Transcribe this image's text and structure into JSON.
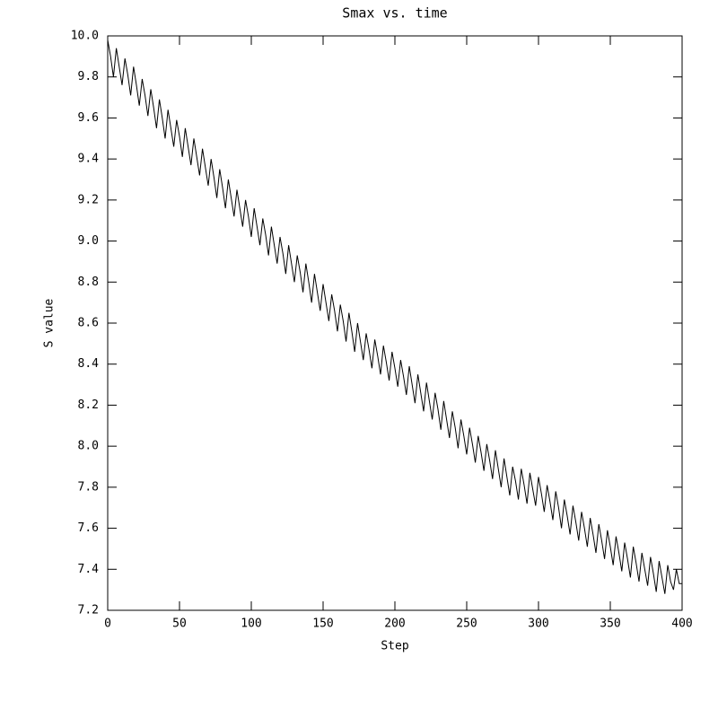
{
  "chart_data": {
    "type": "line",
    "title": "Smax vs. time",
    "x_label": "Step",
    "y_label": "S value",
    "xlim": [
      0,
      400
    ],
    "ylim": [
      7.2,
      10.0
    ],
    "xticks": [
      0,
      50,
      100,
      150,
      200,
      250,
      300,
      350,
      400
    ],
    "yticks": [
      7.2,
      7.4,
      7.6,
      7.8,
      {
        "value": 8.0,
        "label": "8.0"
      },
      8.2,
      8.4,
      8.6,
      8.8,
      {
        "value": 9.0,
        "label": "9.0"
      },
      9.2,
      9.4,
      9.6,
      9.8,
      {
        "value": 10.0,
        "label": "10.0"
      }
    ],
    "x": [
      0,
      2,
      4,
      6,
      8,
      10,
      12,
      14,
      16,
      18,
      20,
      22,
      24,
      26,
      28,
      30,
      32,
      34,
      36,
      38,
      40,
      42,
      44,
      46,
      48,
      50,
      52,
      54,
      56,
      58,
      60,
      62,
      64,
      66,
      68,
      70,
      72,
      74,
      76,
      78,
      80,
      82,
      84,
      86,
      88,
      90,
      92,
      94,
      96,
      98,
      100,
      102,
      104,
      106,
      108,
      110,
      112,
      114,
      116,
      118,
      120,
      122,
      124,
      126,
      128,
      130,
      132,
      134,
      136,
      138,
      140,
      142,
      144,
      146,
      148,
      150,
      152,
      154,
      156,
      158,
      160,
      162,
      164,
      166,
      168,
      170,
      172,
      174,
      176,
      178,
      180,
      182,
      184,
      186,
      188,
      190,
      192,
      194,
      196,
      198,
      200,
      202,
      204,
      206,
      208,
      210,
      212,
      214,
      216,
      218,
      220,
      222,
      224,
      226,
      228,
      230,
      232,
      234,
      236,
      238,
      240,
      242,
      244,
      246,
      248,
      250,
      252,
      254,
      256,
      258,
      260,
      262,
      264,
      266,
      268,
      270,
      272,
      274,
      276,
      278,
      280,
      282,
      284,
      286,
      288,
      290,
      292,
      294,
      296,
      298,
      300,
      302,
      304,
      306,
      308,
      310,
      312,
      314,
      316,
      318,
      320,
      322,
      324,
      326,
      328,
      330,
      332,
      334,
      336,
      338,
      340,
      342,
      344,
      346,
      348,
      350,
      352,
      354,
      356,
      358,
      360,
      362,
      364,
      366,
      368,
      370,
      372,
      374,
      376,
      378,
      380,
      382,
      384,
      386,
      388,
      390,
      392,
      394,
      396,
      398,
      400
    ],
    "series": [
      {
        "name": "Smax",
        "color": "#000000",
        "values": [
          9.98,
          9.9,
          9.8,
          9.94,
          9.85,
          9.76,
          9.89,
          9.81,
          9.71,
          9.85,
          9.76,
          9.66,
          9.79,
          9.71,
          9.61,
          9.74,
          9.65,
          9.55,
          9.69,
          9.6,
          9.5,
          9.64,
          9.55,
          9.46,
          9.59,
          9.51,
          9.41,
          9.55,
          9.46,
          9.37,
          9.5,
          9.41,
          9.32,
          9.45,
          9.36,
          9.27,
          9.4,
          9.31,
          9.21,
          9.35,
          9.26,
          9.16,
          9.3,
          9.21,
          9.12,
          9.25,
          9.16,
          9.07,
          9.2,
          9.12,
          9.02,
          9.16,
          9.07,
          8.98,
          9.11,
          9.03,
          8.93,
          9.07,
          8.98,
          8.89,
          9.02,
          8.94,
          8.84,
          8.98,
          8.89,
          8.8,
          8.93,
          8.85,
          8.75,
          8.89,
          8.8,
          8.7,
          8.84,
          8.75,
          8.66,
          8.79,
          8.7,
          8.61,
          8.74,
          8.66,
          8.56,
          8.69,
          8.61,
          8.51,
          8.65,
          8.56,
          8.46,
          8.6,
          8.51,
          8.42,
          8.55,
          8.47,
          8.38,
          8.52,
          8.44,
          8.35,
          8.49,
          8.41,
          8.32,
          8.46,
          8.38,
          8.29,
          8.42,
          8.34,
          8.25,
          8.39,
          8.3,
          8.21,
          8.35,
          8.26,
          8.17,
          8.31,
          8.22,
          8.13,
          8.26,
          8.18,
          8.08,
          8.22,
          8.13,
          8.04,
          8.17,
          8.09,
          7.99,
          8.13,
          8.05,
          7.96,
          8.09,
          8.01,
          7.92,
          8.05,
          7.97,
          7.88,
          8.01,
          7.93,
          7.84,
          7.98,
          7.89,
          7.8,
          7.94,
          7.85,
          7.76,
          7.9,
          7.83,
          7.74,
          7.89,
          7.81,
          7.72,
          7.87,
          7.79,
          7.71,
          7.85,
          7.77,
          7.68,
          7.81,
          7.73,
          7.64,
          7.78,
          7.7,
          7.6,
          7.74,
          7.66,
          7.57,
          7.71,
          7.63,
          7.54,
          7.68,
          7.6,
          7.51,
          7.65,
          7.57,
          7.48,
          7.62,
          7.54,
          7.45,
          7.59,
          7.51,
          7.42,
          7.56,
          7.48,
          7.39,
          7.53,
          7.45,
          7.36,
          7.51,
          7.43,
          7.34,
          7.48,
          7.4,
          7.32,
          7.46,
          7.38,
          7.29,
          7.44,
          7.36,
          7.28,
          7.42,
          7.34,
          7.3,
          7.4,
          7.33,
          7.33
        ]
      }
    ]
  }
}
